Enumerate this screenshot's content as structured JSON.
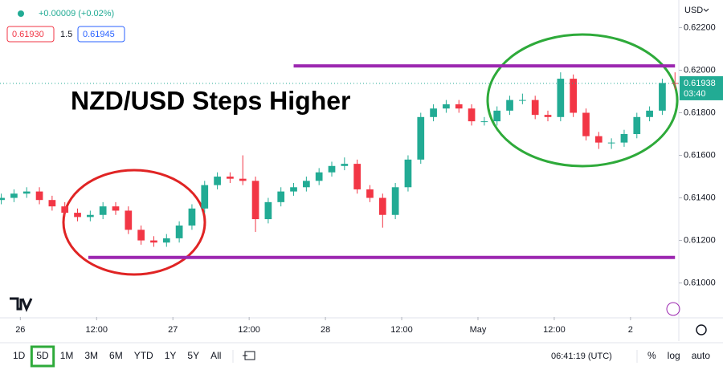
{
  "chart_data": {
    "type": "candlestick",
    "title": "NZD/USD Steps Higher",
    "currency": "USD",
    "header": {
      "change": "+0.00009 (+0.02%)",
      "bid": "0.61930",
      "spread": "1.5",
      "ask": "0.61945"
    },
    "countdown": "03:40",
    "x": [
      -3,
      -1,
      1,
      3,
      5,
      7,
      9,
      11,
      13,
      15,
      17,
      19,
      21,
      23,
      25,
      27,
      29,
      31,
      33,
      35,
      37,
      39,
      41,
      43,
      45,
      47,
      49,
      51,
      53,
      55,
      57,
      59,
      61,
      63,
      65,
      67,
      69,
      71,
      73,
      75,
      77,
      79,
      81,
      83,
      85,
      87,
      89,
      91,
      93,
      95,
      97,
      99,
      101,
      103
    ],
    "open": [
      0.6139,
      0.614,
      0.6142,
      0.6143,
      0.6139,
      0.6136,
      0.6133,
      0.6131,
      0.6132,
      0.6136,
      0.6134,
      0.6125,
      0.612,
      0.6119,
      0.6121,
      0.6127,
      0.6135,
      0.6146,
      0.615,
      0.6149,
      0.6148,
      0.613,
      0.6138,
      0.6143,
      0.6145,
      0.6148,
      0.6152,
      0.6155,
      0.6156,
      0.6144,
      0.614,
      0.6132,
      0.6145,
      0.6158,
      0.6178,
      0.6182,
      0.6184,
      0.6182,
      0.6176,
      0.6176,
      0.6181,
      0.6186,
      0.6186,
      0.6179,
      0.6178,
      0.6196,
      0.618,
      0.6169,
      0.6166,
      0.6166,
      0.617,
      0.6178,
      0.6181,
      0.6194
    ],
    "high": [
      0.6142,
      0.6144,
      0.6145,
      0.6145,
      0.6141,
      0.6138,
      0.6135,
      0.6134,
      0.6138,
      0.6138,
      0.6136,
      0.6127,
      0.6122,
      0.6123,
      0.6129,
      0.6137,
      0.6148,
      0.6152,
      0.6152,
      0.616,
      0.615,
      0.614,
      0.6145,
      0.6147,
      0.615,
      0.6154,
      0.6157,
      0.6159,
      0.6158,
      0.6146,
      0.6142,
      0.6147,
      0.616,
      0.618,
      0.6184,
      0.6186,
      0.6186,
      0.6184,
      0.6178,
      0.6183,
      0.6188,
      0.6189,
      0.6188,
      0.6181,
      0.6199,
      0.6198,
      0.6182,
      0.6171,
      0.6168,
      0.6172,
      0.618,
      0.6183,
      0.6196,
      0.6199
    ],
    "low": [
      0.6137,
      0.6138,
      0.614,
      0.6137,
      0.6134,
      0.6131,
      0.6129,
      0.6129,
      0.613,
      0.6132,
      0.6123,
      0.6118,
      0.6117,
      0.6117,
      0.6119,
      0.6125,
      0.6133,
      0.6144,
      0.6147,
      0.6146,
      0.6124,
      0.6128,
      0.6136,
      0.6141,
      0.6143,
      0.6146,
      0.615,
      0.6153,
      0.6142,
      0.6138,
      0.6126,
      0.613,
      0.6143,
      0.6156,
      0.6176,
      0.618,
      0.618,
      0.6174,
      0.6174,
      0.6174,
      0.6179,
      0.6184,
      0.6177,
      0.6176,
      0.6176,
      0.6178,
      0.6167,
      0.6163,
      0.6163,
      0.6164,
      0.6168,
      0.6176,
      0.6179,
      0.6191
    ],
    "close": [
      0.614,
      0.6142,
      0.6143,
      0.6139,
      0.6136,
      0.6133,
      0.6131,
      0.6132,
      0.6136,
      0.6134,
      0.6125,
      0.612,
      0.6119,
      0.6121,
      0.6127,
      0.6135,
      0.6146,
      0.615,
      0.6149,
      0.6148,
      0.613,
      0.6138,
      0.6143,
      0.6145,
      0.6148,
      0.6152,
      0.6155,
      0.6156,
      0.6144,
      0.614,
      0.6132,
      0.6145,
      0.6158,
      0.6178,
      0.6182,
      0.6184,
      0.6182,
      0.6176,
      0.6176,
      0.6181,
      0.6186,
      0.6186,
      0.6179,
      0.6178,
      0.6196,
      0.618,
      0.6169,
      0.6166,
      0.6166,
      0.617,
      0.6178,
      0.6181,
      0.6194,
      0.61938
    ],
    "up_color": "#22ab94",
    "down_color": "#f23645",
    "hlines": [
      {
        "value": 0.6202,
        "x": [
          43,
          103
        ],
        "color": "#9c27b0"
      },
      {
        "value": 0.6112,
        "x": [
          10.7,
          103
        ],
        "color": "#9c27b0"
      }
    ],
    "xlim": [
      -3.2,
      103.6
    ],
    "ylim": [
      0.6084,
      0.6233
    ],
    "xticks": [
      {
        "value": 0,
        "label": "26"
      },
      {
        "value": 12,
        "label": "12:00"
      },
      {
        "value": 24,
        "label": "27"
      },
      {
        "value": 36,
        "label": "12:00"
      },
      {
        "value": 48,
        "label": "28"
      },
      {
        "value": 60,
        "label": "12:00"
      },
      {
        "value": 72,
        "label": "May"
      },
      {
        "value": 84,
        "label": "12:00"
      },
      {
        "value": 96,
        "label": "2"
      }
    ],
    "yticks": [
      {
        "value": 0.61,
        "label": "0.61000"
      },
      {
        "value": 0.612,
        "label": "0.61200"
      },
      {
        "value": 0.614,
        "label": "0.61400"
      },
      {
        "value": 0.616,
        "label": "0.61600"
      },
      {
        "value": 0.618,
        "label": "0.61800"
      },
      {
        "value": 0.62,
        "label": "0.62000"
      },
      {
        "value": 0.622,
        "label": "0.62200"
      }
    ],
    "grid": false
  },
  "toolbar": {
    "periods": [
      "1D",
      "5D",
      "1M",
      "3M",
      "6M",
      "YTD",
      "1Y",
      "5Y",
      "All"
    ],
    "active_period_index": 1,
    "clock": "06:41:19 (UTC)",
    "options": [
      "%",
      "log",
      "auto"
    ]
  }
}
